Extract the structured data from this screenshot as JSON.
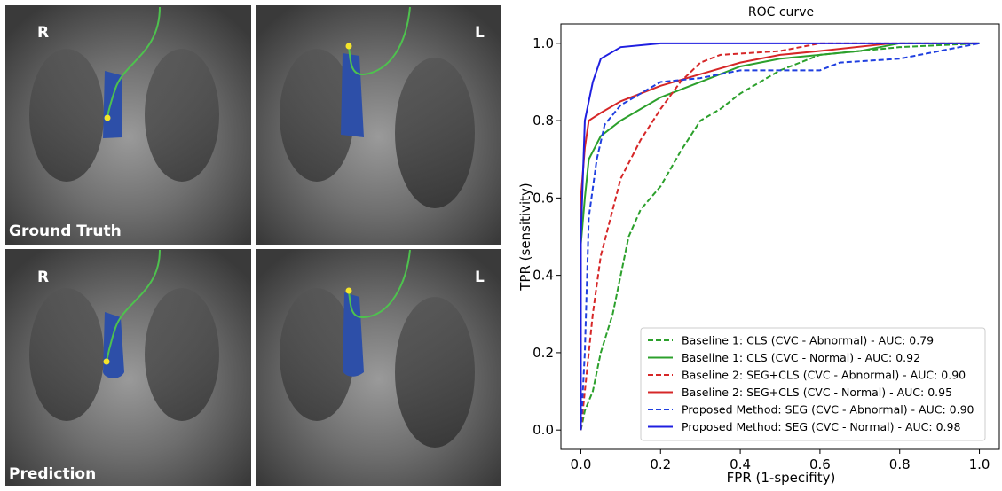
{
  "images": {
    "side_labels": [
      "R",
      "L"
    ],
    "row_labels": [
      "Ground Truth",
      "Prediction"
    ]
  },
  "chart_data": {
    "type": "line",
    "title": "ROC curve",
    "x_label": "FPR (1-specifity)",
    "y_label": "TPR (sensitivity)",
    "xlim": [
      -0.05,
      1.05
    ],
    "ylim": [
      -0.05,
      1.05
    ],
    "xticks": [
      {
        "value": 0,
        "label": "0.0"
      },
      0.2,
      0.4,
      0.6,
      0.8,
      {
        "value": 1,
        "label": "1.0"
      }
    ],
    "yticks": [
      {
        "value": 0,
        "label": "0.0"
      },
      0.2,
      0.4,
      0.6,
      0.8,
      {
        "value": 1,
        "label": "1.0"
      }
    ],
    "legend": "lower right",
    "series": [
      {
        "name": "Baseline 1: CLS (CVC - Abnormal) - AUC: 0.79",
        "color": "#2ca02c",
        "dashed": true,
        "x": [
          0,
          0.01,
          0.03,
          0.05,
          0.08,
          0.1,
          0.12,
          0.15,
          0.2,
          0.25,
          0.3,
          0.35,
          0.4,
          0.45,
          0.5,
          0.55,
          0.6,
          0.7,
          0.8,
          1
        ],
        "values": [
          0,
          0.05,
          0.1,
          0.2,
          0.3,
          0.4,
          0.5,
          0.57,
          0.63,
          0.72,
          0.8,
          0.83,
          0.87,
          0.9,
          0.93,
          0.95,
          0.97,
          0.98,
          0.99,
          1
        ]
      },
      {
        "name": "Baseline 1: CLS (CVC - Normal) - AUC: 0.92",
        "color": "#2ca02c",
        "dashed": false,
        "x": [
          0,
          0,
          0.01,
          0.02,
          0.05,
          0.1,
          0.15,
          0.2,
          0.25,
          0.3,
          0.4,
          0.5,
          0.6,
          0.7,
          0.8,
          1
        ],
        "values": [
          0,
          0.48,
          0.6,
          0.7,
          0.76,
          0.8,
          0.83,
          0.86,
          0.88,
          0.9,
          0.94,
          0.96,
          0.97,
          0.98,
          1,
          1
        ]
      },
      {
        "name": "Baseline 2: SEG+CLS (CVC - Abnormal) - AUC: 0.90",
        "color": "#d62728",
        "dashed": true,
        "x": [
          0,
          0.01,
          0.03,
          0.05,
          0.08,
          0.1,
          0.15,
          0.2,
          0.25,
          0.3,
          0.35,
          0.5,
          0.6,
          1
        ],
        "values": [
          0,
          0.1,
          0.3,
          0.45,
          0.57,
          0.65,
          0.75,
          0.83,
          0.9,
          0.95,
          0.97,
          0.98,
          1,
          1
        ]
      },
      {
        "name": "Baseline 2: SEG+CLS (CVC - Normal) - AUC: 0.95",
        "color": "#d62728",
        "dashed": false,
        "x": [
          0,
          0,
          0.01,
          0.02,
          0.05,
          0.1,
          0.15,
          0.2,
          0.3,
          0.4,
          0.5,
          0.6,
          0.78
        ],
        "values": [
          0,
          0.6,
          0.73,
          0.8,
          0.82,
          0.85,
          0.87,
          0.89,
          0.92,
          0.95,
          0.97,
          0.98,
          1
        ]
      },
      {
        "name": "Proposed Method: SEG (CVC - Abnormal) - AUC: 0.90",
        "color": "#1f3fe0",
        "dashed": true,
        "x": [
          0,
          0.01,
          0.02,
          0.04,
          0.06,
          0.1,
          0.15,
          0.2,
          0.3,
          0.4,
          0.6,
          0.65,
          0.8,
          0.9,
          1
        ],
        "values": [
          0,
          0.2,
          0.55,
          0.7,
          0.79,
          0.84,
          0.87,
          0.9,
          0.91,
          0.93,
          0.93,
          0.95,
          0.96,
          0.98,
          1
        ]
      },
      {
        "name": "Proposed Method: SEG (CVC - Normal) - AUC: 0.98",
        "color": "#1f1fe0",
        "dashed": false,
        "x": [
          0,
          0,
          0.01,
          0.03,
          0.05,
          0.1,
          0.2,
          1
        ],
        "values": [
          0,
          0.5,
          0.8,
          0.9,
          0.96,
          0.99,
          1,
          1
        ]
      }
    ]
  }
}
